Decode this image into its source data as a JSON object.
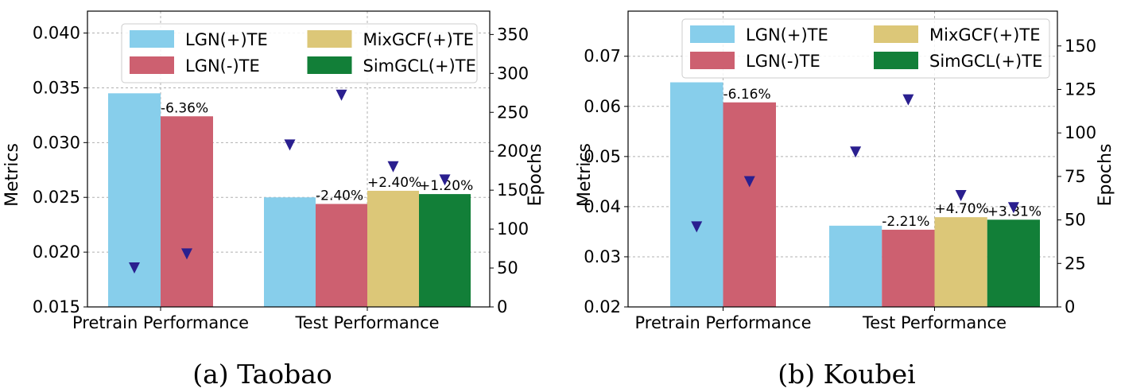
{
  "chart_data": [
    {
      "type": "bar",
      "caption": "(a) Taobao",
      "categories": [
        "Pretrain Performance",
        "Test Performance"
      ],
      "ylabel": "Metrics",
      "y2label": "Epochs",
      "ylim": [
        0.015,
        0.042
      ],
      "yticks": [
        0.015,
        0.02,
        0.025,
        0.03,
        0.035,
        0.04
      ],
      "y2lim": [
        0,
        380
      ],
      "y2ticks": [
        0,
        50,
        100,
        150,
        200,
        250,
        300,
        350
      ],
      "grid": true,
      "legend_position": "top",
      "series": [
        {
          "name": "LGN(+)TE",
          "color": "#87ceeb",
          "values": [
            0.0345,
            0.025
          ],
          "labels": [
            "",
            ""
          ],
          "epochs": [
            50,
            208
          ]
        },
        {
          "name": "LGN(-)TE",
          "color": "#cd6070",
          "values": [
            0.0324,
            0.0244
          ],
          "labels": [
            "-6.36%",
            "-2.40%"
          ],
          "epochs": [
            68,
            272
          ]
        },
        {
          "name": "MixGCF(+)TE",
          "color": "#dcc778",
          "values": [
            null,
            0.0256
          ],
          "labels": [
            "",
            "+2.40%"
          ],
          "epochs": [
            null,
            180
          ]
        },
        {
          "name": "SimGCL(+)TE",
          "color": "#127f38",
          "values": [
            null,
            0.0253
          ],
          "labels": [
            "",
            "+1.20%"
          ],
          "epochs": [
            null,
            163
          ]
        }
      ]
    },
    {
      "type": "bar",
      "caption": "(b) Koubei",
      "categories": [
        "Pretrain Performance",
        "Test Performance"
      ],
      "ylabel": "Metrics",
      "y2label": "Epochs",
      "ylim": [
        0.02,
        0.079
      ],
      "yticks": [
        0.02,
        0.03,
        0.04,
        0.05,
        0.06,
        0.07
      ],
      "y2lim": [
        0,
        170
      ],
      "y2ticks": [
        0,
        25,
        50,
        75,
        100,
        125,
        150
      ],
      "grid": true,
      "legend_position": "top",
      "series": [
        {
          "name": "LGN(+)TE",
          "color": "#87ceeb",
          "values": [
            0.0648,
            0.0362
          ],
          "labels": [
            "",
            ""
          ],
          "epochs": [
            46,
            89
          ]
        },
        {
          "name": "LGN(-)TE",
          "color": "#cd6070",
          "values": [
            0.0608,
            0.0354
          ],
          "labels": [
            "-6.16%",
            "-2.21%"
          ],
          "epochs": [
            72,
            119
          ]
        },
        {
          "name": "MixGCF(+)TE",
          "color": "#dcc778",
          "values": [
            null,
            0.0379
          ],
          "labels": [
            "",
            "+4.70%"
          ],
          "epochs": [
            null,
            64
          ]
        },
        {
          "name": "SimGCL(+)TE",
          "color": "#127f38",
          "values": [
            null,
            0.0374
          ],
          "labels": [
            "",
            "+3.31%"
          ],
          "epochs": [
            null,
            57
          ]
        }
      ]
    }
  ],
  "marker_color": "#2a1f8f"
}
